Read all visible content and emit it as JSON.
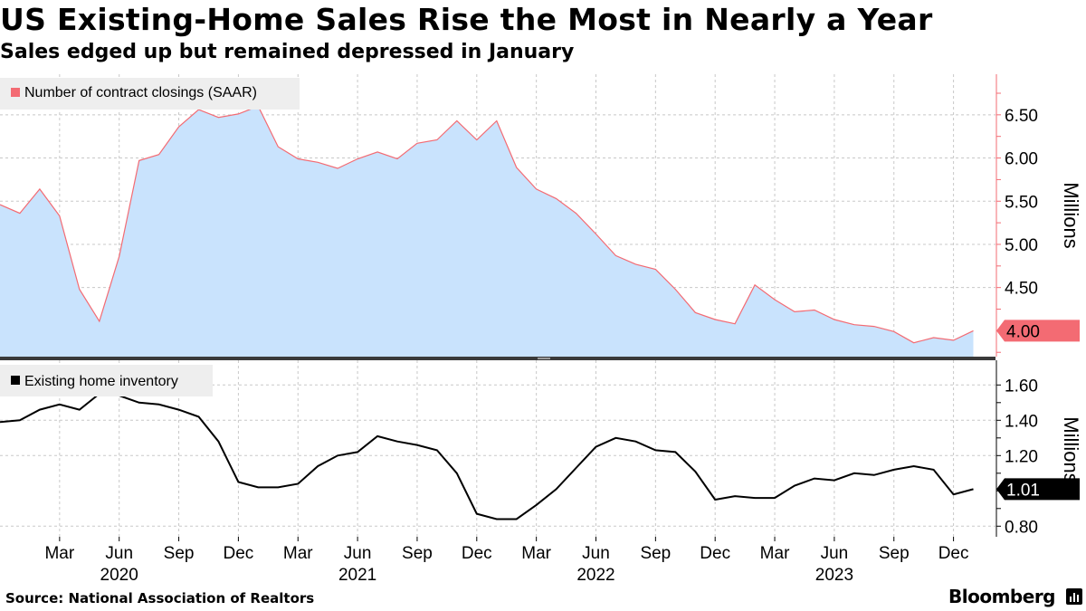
{
  "header": {
    "title": "US Existing-Home Sales Rise the Most in Nearly a Year",
    "subtitle": "Sales edged up but remained depressed in January"
  },
  "footer": {
    "source": "Source: National Association of Realtors",
    "brand": "Bloomberg"
  },
  "colors": {
    "sales_line": "#f36b73",
    "sales_fill": "#c9e3fd",
    "inventory_line": "#000000",
    "grid": "#c8c8c8",
    "legend_bg": "#eeeeee",
    "sales_marker": "#f36b73",
    "inventory_marker": "#000000"
  },
  "chart_data": [
    {
      "type": "area",
      "name": "sales",
      "legend": "Number of contract closings (SAAR)",
      "ylabel": "Millions",
      "ylim": [
        3.7,
        6.97
      ],
      "yticks": [
        4.5,
        5.0,
        5.5,
        6.0,
        6.5
      ],
      "ytick_labels": [
        "4.50",
        "5.00",
        "5.50",
        "6.00",
        "6.50"
      ],
      "last_value_label": "4.00",
      "x": [
        "2019-12",
        "2020-01",
        "2020-02",
        "2020-03",
        "2020-04",
        "2020-05",
        "2020-06",
        "2020-07",
        "2020-08",
        "2020-09",
        "2020-10",
        "2020-11",
        "2020-12",
        "2021-01",
        "2021-02",
        "2021-03",
        "2021-04",
        "2021-05",
        "2021-06",
        "2021-07",
        "2021-08",
        "2021-09",
        "2021-10",
        "2021-11",
        "2021-12",
        "2022-01",
        "2022-02",
        "2022-03",
        "2022-04",
        "2022-05",
        "2022-06",
        "2022-07",
        "2022-08",
        "2022-09",
        "2022-10",
        "2022-11",
        "2022-12",
        "2023-01",
        "2023-02",
        "2023-03",
        "2023-04",
        "2023-05",
        "2023-06",
        "2023-07",
        "2023-08",
        "2023-09",
        "2023-10",
        "2023-11",
        "2023-12",
        "2024-01"
      ],
      "values": [
        5.46,
        5.36,
        5.64,
        5.33,
        4.48,
        4.11,
        4.86,
        5.97,
        6.04,
        6.36,
        6.56,
        6.47,
        6.51,
        6.6,
        6.13,
        5.99,
        5.95,
        5.88,
        5.99,
        6.07,
        5.99,
        6.17,
        6.21,
        6.43,
        6.21,
        6.43,
        5.89,
        5.64,
        5.53,
        5.36,
        5.12,
        4.87,
        4.77,
        4.71,
        4.48,
        4.21,
        4.13,
        4.08,
        4.53,
        4.36,
        4.22,
        4.24,
        4.13,
        4.07,
        4.05,
        3.99,
        3.86,
        3.92,
        3.89,
        4.0
      ]
    },
    {
      "type": "line",
      "name": "inventory",
      "legend": "Existing home inventory",
      "ylabel": "Millions",
      "ylim": [
        0.74,
        1.74
      ],
      "yticks": [
        0.8,
        1.2,
        1.4,
        1.6
      ],
      "ytick_labels": [
        "0.80",
        "1.20",
        "1.40",
        "1.60"
      ],
      "last_value_label": "1.01",
      "x": [
        "2019-12",
        "2020-01",
        "2020-02",
        "2020-03",
        "2020-04",
        "2020-05",
        "2020-06",
        "2020-07",
        "2020-08",
        "2020-09",
        "2020-10",
        "2020-11",
        "2020-12",
        "2021-01",
        "2021-02",
        "2021-03",
        "2021-04",
        "2021-05",
        "2021-06",
        "2021-07",
        "2021-08",
        "2021-09",
        "2021-10",
        "2021-11",
        "2021-12",
        "2022-01",
        "2022-02",
        "2022-03",
        "2022-04",
        "2022-05",
        "2022-06",
        "2022-07",
        "2022-08",
        "2022-09",
        "2022-10",
        "2022-11",
        "2022-12",
        "2023-01",
        "2023-02",
        "2023-03",
        "2023-04",
        "2023-05",
        "2023-06",
        "2023-07",
        "2023-08",
        "2023-09",
        "2023-10",
        "2023-11",
        "2023-12",
        "2024-01"
      ],
      "values": [
        1.39,
        1.4,
        1.46,
        1.49,
        1.46,
        1.55,
        1.54,
        1.5,
        1.49,
        1.46,
        1.42,
        1.28,
        1.05,
        1.02,
        1.02,
        1.04,
        1.14,
        1.2,
        1.22,
        1.31,
        1.28,
        1.26,
        1.23,
        1.1,
        0.87,
        0.84,
        0.84,
        0.92,
        1.01,
        1.13,
        1.25,
        1.3,
        1.28,
        1.23,
        1.22,
        1.11,
        0.95,
        0.97,
        0.96,
        0.96,
        1.03,
        1.07,
        1.06,
        1.1,
        1.09,
        1.12,
        1.14,
        1.12,
        0.98,
        1.01
      ]
    }
  ],
  "x_axis": {
    "month_ticks": [
      {
        "label": "Mar",
        "index": 3
      },
      {
        "label": "Jun",
        "index": 6
      },
      {
        "label": "Sep",
        "index": 9
      },
      {
        "label": "Dec",
        "index": 12
      },
      {
        "label": "Mar",
        "index": 15
      },
      {
        "label": "Jun",
        "index": 18
      },
      {
        "label": "Sep",
        "index": 21
      },
      {
        "label": "Dec",
        "index": 24
      },
      {
        "label": "Mar",
        "index": 27
      },
      {
        "label": "Jun",
        "index": 30
      },
      {
        "label": "Sep",
        "index": 33
      },
      {
        "label": "Dec",
        "index": 36
      },
      {
        "label": "Mar",
        "index": 39
      },
      {
        "label": "Jun",
        "index": 42
      },
      {
        "label": "Sep",
        "index": 45
      },
      {
        "label": "Dec",
        "index": 48
      }
    ],
    "years": [
      {
        "label": "2020",
        "index": 6
      },
      {
        "label": "2021",
        "index": 18
      },
      {
        "label": "2022",
        "index": 30
      },
      {
        "label": "2023",
        "index": 42
      }
    ]
  }
}
